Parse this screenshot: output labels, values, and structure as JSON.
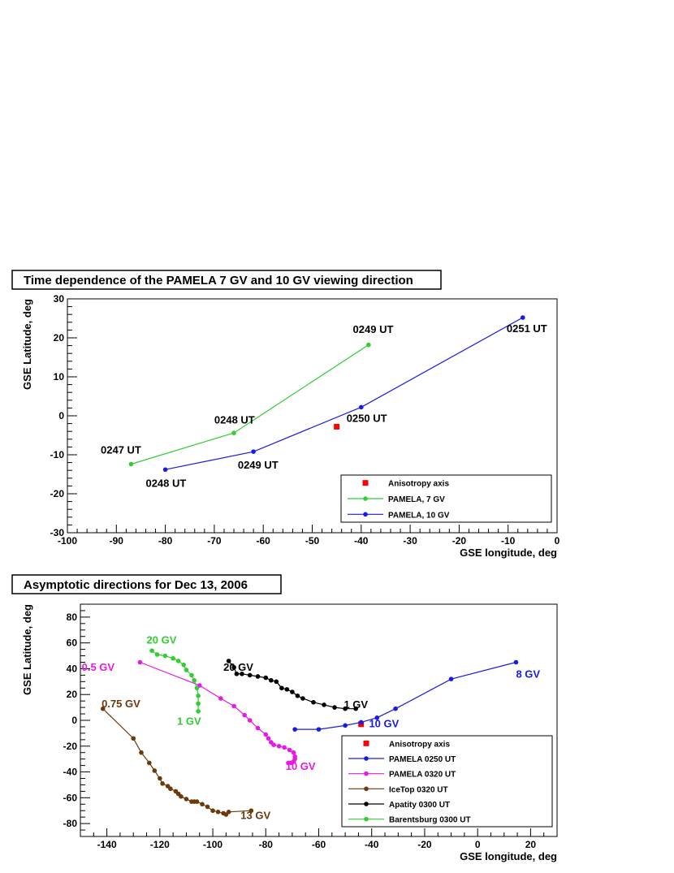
{
  "chart_data": [
    {
      "type": "line",
      "title": "Time dependence of the PAMELA 7 GV and 10 GV viewing direction",
      "xlabel": "GSE longitude, deg",
      "ylabel": "GSE Latitude, deg",
      "xlim": [
        -100,
        0
      ],
      "ylim": [
        -30,
        30
      ],
      "xticks": [
        -100,
        -90,
        -80,
        -70,
        -60,
        -50,
        -40,
        -30,
        -20,
        -10,
        0
      ],
      "yticks": [
        -30,
        -20,
        -10,
        0,
        10,
        20,
        30
      ],
      "legend": "bottom-right",
      "series": [
        {
          "name": "Anisotropy axis",
          "kind": "marker",
          "color": "#ff0000",
          "x": [
            -45
          ],
          "y": [
            -2.8
          ]
        },
        {
          "name": "PAMELA, 7 GV",
          "kind": "line",
          "color": "#33cc33",
          "x": [
            -87,
            -66,
            -38.5
          ],
          "y": [
            -12.4,
            -4.4,
            18.2
          ]
        },
        {
          "name": "PAMELA, 10 GV",
          "kind": "line",
          "color": "#1a1ae6",
          "x": [
            -80,
            -62,
            -40,
            -7
          ],
          "y": [
            -13.8,
            -9.2,
            2.2,
            25.2
          ]
        }
      ],
      "annotations": [
        {
          "text": "0247 UT",
          "x": -93.2,
          "y": -9.7,
          "color": "#000000"
        },
        {
          "text": "0248 UT",
          "x": -84,
          "y": -18.2,
          "color": "#000000"
        },
        {
          "text": "0248 UT",
          "x": -70,
          "y": -2,
          "color": "#000000"
        },
        {
          "text": "0249 UT",
          "x": -65.2,
          "y": -13.5,
          "color": "#000000"
        },
        {
          "text": "0249 UT",
          "x": -41.7,
          "y": 21.2,
          "color": "#000000"
        },
        {
          "text": "0250 UT",
          "x": -43,
          "y": -1.6,
          "color": "#000000"
        },
        {
          "text": "0251 UT",
          "x": -10.3,
          "y": 21.5,
          "color": "#000000"
        }
      ]
    },
    {
      "type": "line",
      "title": "Asymptotic directions for Dec 13, 2006",
      "xlabel": "GSE longitude, deg",
      "ylabel": "GSE Latitude, deg",
      "xlim": [
        -150,
        30
      ],
      "ylim": [
        -90,
        90
      ],
      "xticks": [
        -140,
        -120,
        -100,
        -80,
        -60,
        -40,
        -20,
        0,
        20
      ],
      "yticks": [
        -80,
        -60,
        -40,
        -20,
        0,
        20,
        40,
        60,
        80
      ],
      "legend": "bottom-right",
      "series": [
        {
          "name": "Anisotropy axis",
          "kind": "marker",
          "color": "#ff0000",
          "x": [
            -44
          ],
          "y": [
            -3
          ]
        },
        {
          "name": "PAMELA 0250 UT",
          "kind": "line",
          "color": "#1a1ae6",
          "x": [
            -69,
            -60,
            -50,
            -44,
            -38,
            -31,
            -10,
            14.5
          ],
          "y": [
            -7,
            -7,
            -4,
            -1.5,
            2,
            9,
            32,
            45
          ]
        },
        {
          "name": "PAMELA 0320 UT",
          "kind": "line",
          "color": "#e619e6",
          "x": [
            -127.5,
            -105,
            -97,
            -92,
            -88,
            -86,
            -83,
            -80,
            -79,
            -78,
            -77,
            -75,
            -73,
            -71,
            -69.5,
            -69,
            -69,
            -69.5,
            -70.5,
            -71.5
          ],
          "y": [
            45,
            27,
            17,
            11,
            4,
            0,
            -6,
            -11,
            -14,
            -17,
            -19,
            -20,
            -21,
            -23,
            -25,
            -28,
            -30,
            -32,
            -33,
            -33
          ]
        },
        {
          "name": "IceTop 0320 UT",
          "kind": "line",
          "color": "#6b3a0a",
          "x": [
            -141.5,
            -130,
            -127,
            -124,
            -122,
            -120,
            -119,
            -117,
            -116,
            -114,
            -113,
            -112,
            -110,
            -108,
            -107,
            -106,
            -104,
            -102,
            -100,
            -98,
            -96,
            -95,
            -94,
            -85.5
          ],
          "y": [
            9,
            -14,
            -25,
            -33,
            -39,
            -45,
            -49,
            -51,
            -53,
            -55,
            -57,
            -59,
            -61,
            -63,
            -63,
            -63,
            -65,
            -67,
            -70,
            -71,
            -72,
            -73,
            -71,
            -70
          ]
        },
        {
          "name": "Apatity 0300 UT",
          "kind": "line",
          "color": "#000000",
          "x": [
            -94,
            -92,
            -91,
            -89,
            -86,
            -83,
            -80,
            -78,
            -76,
            -74,
            -72,
            -70,
            -68,
            -66,
            -62,
            -58,
            -54,
            -50,
            -46
          ],
          "y": [
            46,
            41,
            36,
            36,
            35,
            34,
            33,
            31,
            30,
            25,
            24,
            22,
            19,
            17,
            14,
            12,
            10,
            9,
            9
          ]
        },
        {
          "name": "Barentsburg 0300 UT",
          "kind": "line",
          "color": "#33cc33",
          "x": [
            -123,
            -121,
            -118,
            -115,
            -113,
            -111,
            -110,
            -108,
            -107,
            -106,
            -105.5,
            -105.5,
            -105.5
          ],
          "y": [
            54,
            51,
            50,
            48,
            46,
            43,
            39,
            35,
            31,
            25,
            19,
            13,
            7
          ]
        }
      ],
      "annotations": [
        {
          "text": "20 GV",
          "x": -125,
          "y": 59.5,
          "color": "#33cc33"
        },
        {
          "text": "0.5 GV",
          "x": -149.5,
          "y": 38.5,
          "color": "#e619e6"
        },
        {
          "text": "20 GV",
          "x": -96,
          "y": 38.5,
          "color": "#000000"
        },
        {
          "text": "0.75 GV",
          "x": -142,
          "y": 10,
          "color": "#6b3a0a"
        },
        {
          "text": "1 GV",
          "x": -113.5,
          "y": -3.5,
          "color": "#33cc33"
        },
        {
          "text": "1 GV",
          "x": -50.5,
          "y": 9.5,
          "color": "#000000"
        },
        {
          "text": "10 GV",
          "x": -41,
          "y": -5.5,
          "color": "#1a1ae6"
        },
        {
          "text": "10 GV",
          "x": -72.5,
          "y": -38.5,
          "color": "#e619e6"
        },
        {
          "text": "8 GV",
          "x": 14.5,
          "y": 33,
          "color": "#1a1ae6"
        },
        {
          "text": "13 GV",
          "x": -89.5,
          "y": -76.5,
          "color": "#6b3a0a"
        }
      ]
    }
  ]
}
